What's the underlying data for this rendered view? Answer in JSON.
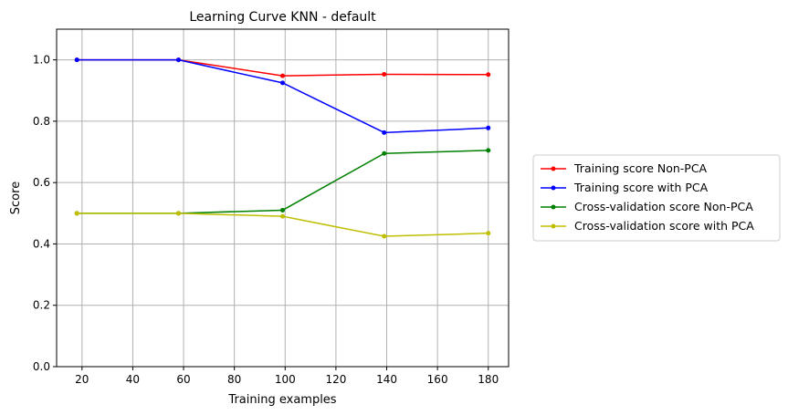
{
  "chart_data": {
    "type": "line",
    "title": "Learning Curve KNN - default",
    "xlabel": "Training examples",
    "ylabel": "Score",
    "xlim": [
      10,
      188
    ],
    "ylim": [
      0.0,
      1.1
    ],
    "xticks": [
      20,
      40,
      60,
      80,
      100,
      120,
      140,
      160,
      180
    ],
    "yticks": [
      0.0,
      0.2,
      0.4,
      0.6,
      0.8,
      1.0
    ],
    "xtick_labels": [
      "20",
      "40",
      "60",
      "80",
      "100",
      "120",
      "140",
      "160",
      "180"
    ],
    "ytick_labels": [
      "0.0",
      "0.2",
      "0.4",
      "0.6",
      "0.8",
      "1.0"
    ],
    "grid": true,
    "legend_position": "outside-right",
    "x": [
      18,
      58,
      99,
      139,
      180
    ],
    "series": [
      {
        "name": "Training score Non-PCA",
        "color": "#ff0000",
        "values": [
          1.0,
          1.0,
          0.948,
          0.953,
          0.952
        ]
      },
      {
        "name": "Training score with PCA",
        "color": "#0000ff",
        "values": [
          1.0,
          1.0,
          0.925,
          0.763,
          0.778
        ]
      },
      {
        "name": "Cross-validation score Non-PCA",
        "color": "#008000",
        "values": [
          0.5,
          0.5,
          0.51,
          0.695,
          0.705
        ]
      },
      {
        "name": "Cross-validation score with PCA",
        "color": "#bfbf00",
        "values": [
          0.5,
          0.5,
          0.49,
          0.425,
          0.435
        ]
      }
    ]
  }
}
